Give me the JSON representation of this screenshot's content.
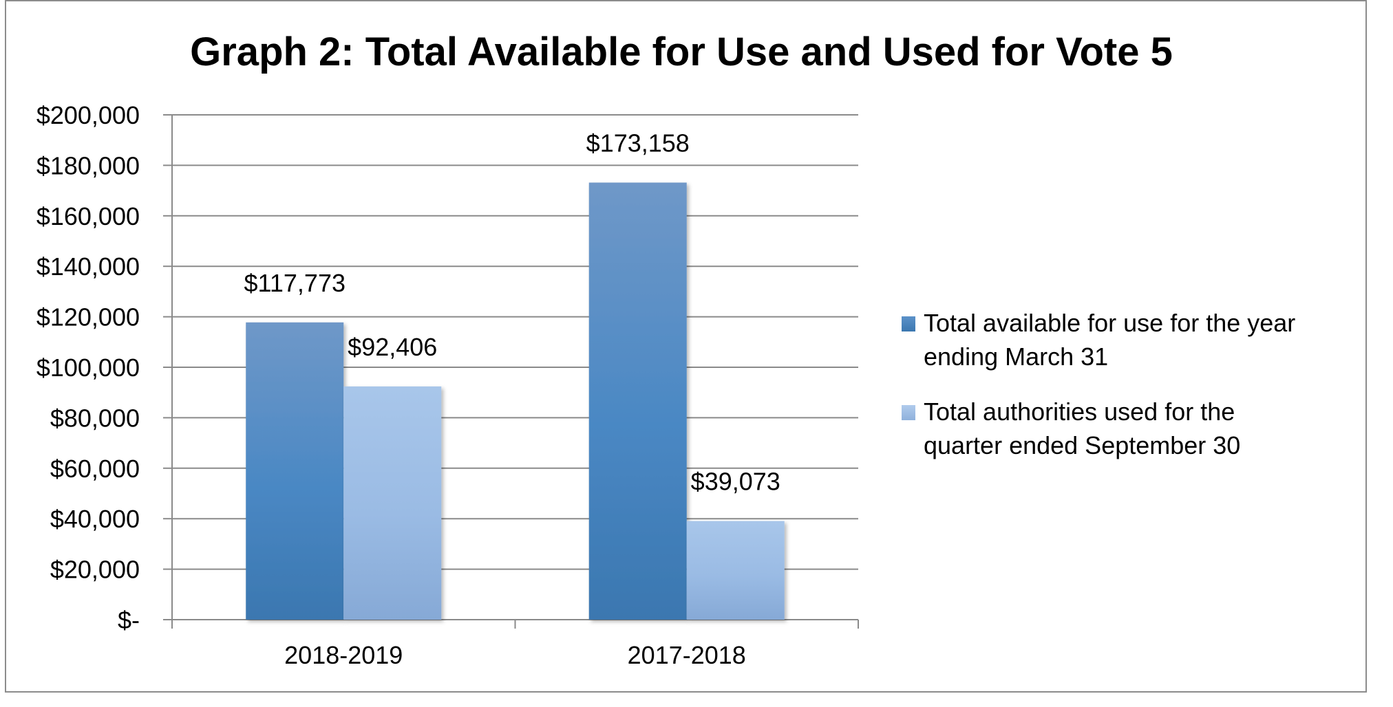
{
  "chart_data": {
    "type": "bar",
    "title": "Graph 2: Total Available for Use and Used for Vote 5",
    "categories": [
      "2018-2019",
      "2017-2018"
    ],
    "series": [
      {
        "name": "Total available for use for the year ending March 31",
        "legend_lines": [
          "Total available for use for the year",
          "ending March 31"
        ],
        "values": [
          117773,
          173158
        ],
        "labels": [
          "$117,773",
          "$173,158"
        ],
        "color": "#4f86c0"
      },
      {
        "name": "Total authorities used for the quarter ended September 30",
        "legend_lines": [
          "Total authorities used for the",
          "quarter ended September 30"
        ],
        "values": [
          92406,
          39073
        ],
        "labels": [
          "$92,406",
          "$39,073"
        ],
        "color": "#9cbce3"
      }
    ],
    "ylim": [
      0,
      200000
    ],
    "ytick_values": [
      0,
      20000,
      40000,
      60000,
      80000,
      100000,
      120000,
      140000,
      160000,
      180000,
      200000
    ],
    "ytick_labels": [
      "$-",
      "$20,000",
      "$40,000",
      "$60,000",
      "$80,000",
      "$100,000",
      "$120,000",
      "$140,000",
      "$160,000",
      "$180,000",
      "$200,000"
    ],
    "xlabel": "",
    "ylabel": "",
    "grid": true,
    "legend_position": "right"
  }
}
